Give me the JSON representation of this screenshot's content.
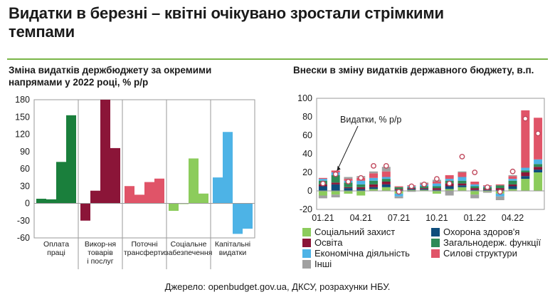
{
  "title": "Видатки в березні – квітні очікувано зростали стрімкими темпами",
  "left_subtitle": "Зміна видатків держбюджету за окремими напрямами у 2022 році, % р/р",
  "right_subtitle": "Внески в зміну видатків державного бюджету, в.п.",
  "source": "Джерело: openbudget.gov.ua, ДКСУ, розрахунки НБУ.",
  "colors": {
    "dark_green": "#1a7f3c",
    "maroon": "#8b1538",
    "red": "#e05468",
    "light_green": "#8ccc5c",
    "light_blue": "#4db3e6",
    "navy": "#0e4d7c",
    "mid_green": "#2e8b57",
    "gray": "#a0a0a0"
  },
  "chart_data": [
    {
      "type": "bar",
      "title": "Зміна видатків держбюджету за окремими напрямами у 2022 році, % р/р",
      "ylim": [
        -60,
        180
      ],
      "yticks": [
        -60,
        -30,
        0,
        30,
        60,
        90,
        120,
        150,
        180
      ],
      "groups": [
        {
          "label_lines": [
            "Оплата",
            "праці"
          ],
          "color": "#1a7f3c",
          "values": [
            8,
            7,
            72,
            153
          ]
        },
        {
          "label_lines": [
            "Викор-ня",
            "товарів",
            "і послуг"
          ],
          "color": "#8b1538",
          "values": [
            -30,
            22,
            180,
            96
          ]
        },
        {
          "label_lines": [
            "Поточні",
            "трансферти"
          ],
          "color": "#e05468",
          "values": [
            30,
            15,
            37,
            43
          ]
        },
        {
          "label_lines": [
            "Соціальне",
            "забезпечення"
          ],
          "color": "#8ccc5c",
          "values": [
            -13,
            -1,
            78,
            17
          ]
        },
        {
          "label_lines": [
            "Капітальні",
            "видатки"
          ],
          "color": "#4db3e6",
          "values": [
            45,
            124,
            -53,
            -44
          ]
        }
      ]
    },
    {
      "type": "stacked_bar",
      "title": "Внески в зміну видатків державного бюджету, в.п.",
      "ylim": [
        -20,
        100
      ],
      "yticks": [
        -20,
        0,
        20,
        40,
        60,
        80,
        100
      ],
      "xtick_labels": [
        "01.21",
        "04.21",
        "07.21",
        "10.21",
        "01.22",
        "04.22"
      ],
      "series": [
        {
          "name": "Соціальний захист",
          "color": "#8ccc5c",
          "values": [
            -5,
            -4,
            -3,
            -5,
            2,
            4,
            -3,
            1,
            1,
            -3,
            2,
            4,
            -4,
            -1,
            -3,
            2,
            13,
            20
          ]
        },
        {
          "name": "Охорона здоров'я",
          "color": "#0e4d7c",
          "values": [
            5,
            7,
            3,
            2,
            2,
            3,
            1,
            1,
            1,
            1,
            3,
            2,
            1,
            1,
            1,
            3,
            3,
            3
          ]
        },
        {
          "name": "Освіта",
          "color": "#8b1538",
          "values": [
            2,
            2,
            1,
            2,
            3,
            3,
            1,
            1,
            1,
            2,
            3,
            2,
            2,
            1,
            2,
            2,
            4,
            3
          ]
        },
        {
          "name": "Загальнодерж. функції",
          "color": "#2e8b57",
          "values": [
            4,
            8,
            5,
            3,
            4,
            3,
            2,
            1,
            2,
            2,
            3,
            3,
            2,
            2,
            3,
            4,
            2,
            3
          ]
        },
        {
          "name": "Економічна діяльність",
          "color": "#4db3e6",
          "values": [
            2,
            3,
            2,
            4,
            3,
            2,
            -3,
            1,
            2,
            3,
            2,
            4,
            2,
            1,
            -3,
            2,
            3,
            5
          ]
        },
        {
          "name": "Силові структури",
          "color": "#e05468",
          "values": [
            1,
            2,
            2,
            3,
            5,
            6,
            1,
            1,
            1,
            2,
            4,
            5,
            3,
            1,
            1,
            3,
            62,
            45
          ]
        },
        {
          "name": "Інші",
          "color": "#a0a0a0",
          "values": [
            -3,
            -3,
            2,
            2,
            2,
            5,
            -2,
            -1,
            1,
            2,
            -5,
            1,
            -4,
            -1,
            -4,
            1,
            0,
            0
          ]
        }
      ],
      "total": {
        "name": "Видатки, % р/р",
        "values": [
          8,
          18,
          10,
          14,
          27,
          27,
          -1,
          5,
          7,
          13,
          8,
          37,
          20,
          4,
          -1,
          21,
          78,
          62
        ]
      },
      "annotation": "Видатки, % р/р"
    }
  ]
}
